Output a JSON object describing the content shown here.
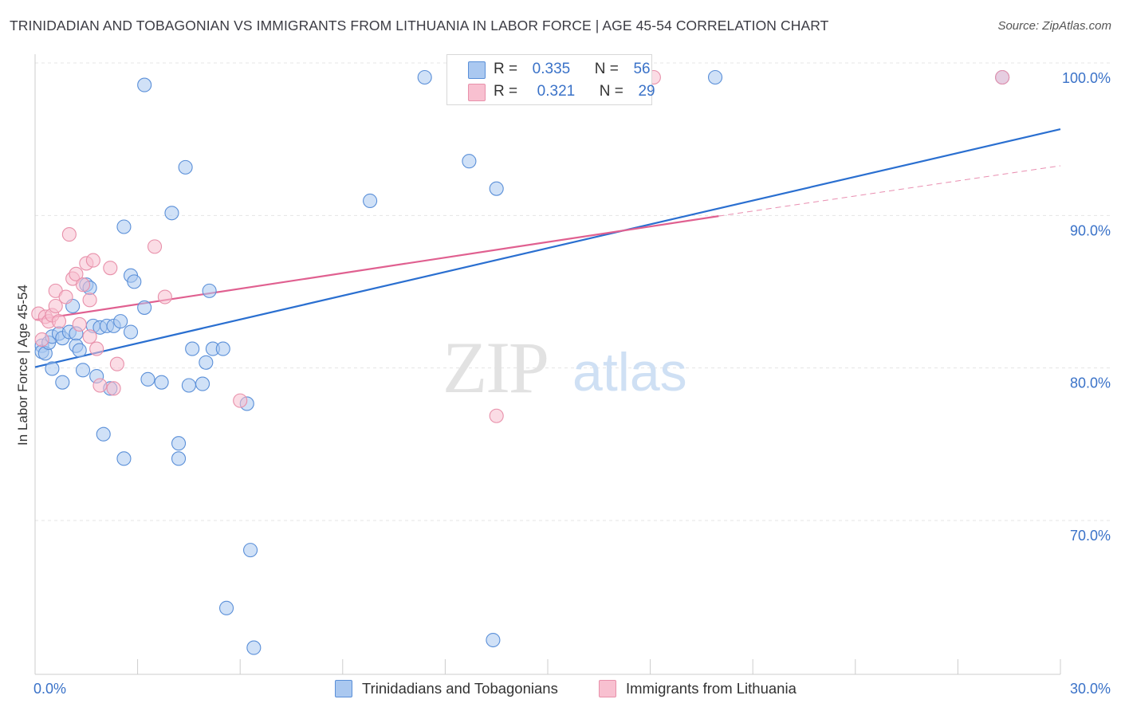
{
  "header": {
    "title": "TRINIDADIAN AND TOBAGONIAN VS IMMIGRANTS FROM LITHUANIA IN LABOR FORCE | AGE 45-54 CORRELATION CHART",
    "source": "Source: ZipAtlas.com"
  },
  "legend": {
    "r_label": "R =",
    "n_label": "N =",
    "blue": {
      "r": "0.335",
      "n": "56"
    },
    "pink": {
      "r": "0.321",
      "n": "29"
    }
  },
  "bottom_legend": {
    "blue_label": "Trinidadians and Tobagonians",
    "pink_label": "Immigrants from Lithuania"
  },
  "watermark": {
    "zip": "ZIP",
    "atlas": "atlas"
  },
  "colors": {
    "blue_fill": "#aac8f0",
    "blue_stroke": "#5a8fd8",
    "blue_line": "#2a6fd0",
    "pink_fill": "#f8c0d0",
    "pink_stroke": "#e890aa",
    "pink_line": "#e06090",
    "tick_label": "#3a72c8"
  },
  "chart_data": {
    "type": "scatter",
    "title": "TRINIDADIAN AND TOBAGONIAN VS IMMIGRANTS FROM LITHUANIA IN LABOR FORCE | AGE 45-54 CORRELATION CHART",
    "xlabel": "",
    "ylabel": "In Labor Force | Age 45-54",
    "xlim": [
      0,
      30
    ],
    "ylim": [
      60.5,
      102
    ],
    "x_tick_labels": [
      {
        "value": 0,
        "label": "0.0%"
      },
      {
        "value": 30,
        "label": "30.0%"
      }
    ],
    "y_ticks": [
      {
        "value": 70,
        "label": "70.0%"
      },
      {
        "value": 80,
        "label": "80.0%"
      },
      {
        "value": 90,
        "label": "90.0%"
      },
      {
        "value": 100,
        "label": "100.0%"
      }
    ],
    "series": [
      {
        "name": "Trinidadians and Tobagonians",
        "color": "blue",
        "points": [
          [
            0.2,
            82.4
          ],
          [
            0.2,
            82.0
          ],
          [
            0.3,
            81.9
          ],
          [
            0.4,
            82.6
          ],
          [
            0.5,
            80.9
          ],
          [
            0.5,
            83.0
          ],
          [
            0.7,
            83.2
          ],
          [
            0.8,
            82.9
          ],
          [
            0.8,
            80.0
          ],
          [
            1.0,
            83.3
          ],
          [
            1.1,
            85.0
          ],
          [
            1.2,
            83.2
          ],
          [
            1.2,
            82.4
          ],
          [
            1.3,
            82.1
          ],
          [
            1.4,
            80.8
          ],
          [
            1.5,
            86.4
          ],
          [
            1.6,
            86.2
          ],
          [
            1.7,
            83.7
          ],
          [
            1.8,
            80.4
          ],
          [
            1.9,
            83.6
          ],
          [
            2.0,
            76.6
          ],
          [
            2.1,
            83.7
          ],
          [
            2.2,
            79.6
          ],
          [
            2.3,
            83.7
          ],
          [
            2.5,
            84.0
          ],
          [
            2.6,
            75.0
          ],
          [
            2.6,
            90.2
          ],
          [
            2.8,
            83.3
          ],
          [
            2.8,
            87.0
          ],
          [
            2.9,
            86.6
          ],
          [
            3.2,
            99.5
          ],
          [
            3.2,
            84.9
          ],
          [
            3.3,
            80.2
          ],
          [
            3.7,
            80.0
          ],
          [
            4.0,
            91.1
          ],
          [
            4.2,
            75.0
          ],
          [
            4.2,
            76.0
          ],
          [
            4.4,
            94.1
          ],
          [
            4.5,
            79.8
          ],
          [
            4.6,
            82.2
          ],
          [
            4.9,
            79.9
          ],
          [
            5.0,
            81.3
          ],
          [
            5.1,
            86.0
          ],
          [
            5.2,
            82.2
          ],
          [
            5.5,
            82.2
          ],
          [
            5.6,
            65.2
          ],
          [
            6.2,
            78.6
          ],
          [
            6.3,
            69.0
          ],
          [
            6.4,
            62.6
          ],
          [
            9.8,
            91.9
          ],
          [
            11.4,
            100.0
          ],
          [
            12.7,
            94.5
          ],
          [
            13.4,
            63.1
          ],
          [
            13.5,
            92.7
          ],
          [
            19.9,
            100.0
          ],
          [
            28.3,
            100.0
          ]
        ]
      },
      {
        "name": "Immigrants from Lithuania",
        "color": "pink",
        "points": [
          [
            0.1,
            84.5
          ],
          [
            0.2,
            82.8
          ],
          [
            0.3,
            84.3
          ],
          [
            0.4,
            84.0
          ],
          [
            0.5,
            84.4
          ],
          [
            0.6,
            85.0
          ],
          [
            0.6,
            86.0
          ],
          [
            0.7,
            84.0
          ],
          [
            0.9,
            85.6
          ],
          [
            1.0,
            89.7
          ],
          [
            1.1,
            86.8
          ],
          [
            1.2,
            87.1
          ],
          [
            1.3,
            83.8
          ],
          [
            1.4,
            86.4
          ],
          [
            1.5,
            87.8
          ],
          [
            1.6,
            85.4
          ],
          [
            1.6,
            83.0
          ],
          [
            1.7,
            88.0
          ],
          [
            1.8,
            82.2
          ],
          [
            1.9,
            79.8
          ],
          [
            2.2,
            87.5
          ],
          [
            2.3,
            79.6
          ],
          [
            2.4,
            81.2
          ],
          [
            3.5,
            88.9
          ],
          [
            3.8,
            85.6
          ],
          [
            6.0,
            78.8
          ],
          [
            13.5,
            77.8
          ],
          [
            18.1,
            100.0
          ],
          [
            28.3,
            100.0
          ]
        ]
      }
    ],
    "trendlines": [
      {
        "series": "Trinidadians and Tobagonians",
        "x": [
          0,
          30
        ],
        "y": [
          81.0,
          96.6
        ],
        "style": "solid"
      },
      {
        "series": "Immigrants from Lithuania",
        "x": [
          0,
          20.0
        ],
        "y": [
          84.1,
          90.9
        ],
        "style": "solid"
      },
      {
        "series": "Immigrants from Lithuania",
        "x": [
          20.0,
          30
        ],
        "y": [
          90.9,
          94.2
        ],
        "style": "dashed"
      }
    ]
  }
}
